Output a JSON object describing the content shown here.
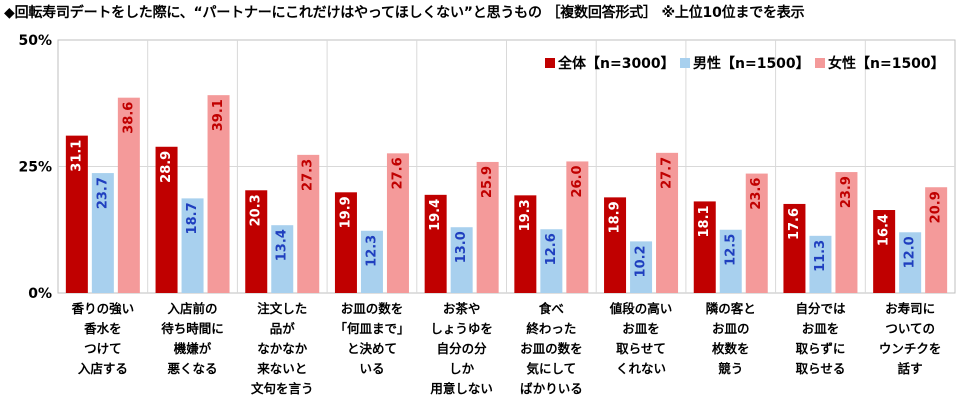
{
  "title": "◆回転寿司デートをした際に、“パートナーにこれだけはやってほしくない”と思うもの ［複数回答形式］ ※上位10位までを表示",
  "chart_data": {
    "type": "bar",
    "ylim": [
      0,
      50
    ],
    "yticks": [
      "0%",
      "25%",
      "50%"
    ],
    "ytick_values": [
      0,
      25,
      50
    ],
    "grid": true,
    "legend_position": "top-right",
    "categories": [
      [
        "香りの強い",
        "香水を",
        "つけて",
        "入店する"
      ],
      [
        "入店前の",
        "待ち時間に",
        "機嫌が",
        "悪くなる"
      ],
      [
        "注文した",
        "品が",
        "なかなか",
        "来ないと",
        "文句を言う"
      ],
      [
        "お皿の数を",
        "「何皿まで」",
        "と決めて",
        "いる"
      ],
      [
        "お茶や",
        "しょうゆを",
        "自分の分",
        "しか",
        "用意しない"
      ],
      [
        "食べ",
        "終わった",
        "お皿の数を",
        "気にして",
        "ばかりいる"
      ],
      [
        "値段の高い",
        "お皿を",
        "取らせて",
        "くれない"
      ],
      [
        "隣の客と",
        "お皿の",
        "枚数を",
        "競う"
      ],
      [
        "自分では",
        "お皿を",
        "取らずに",
        "取らせる"
      ],
      [
        "お寿司に",
        "ついての",
        "ウンチクを",
        "話す"
      ]
    ],
    "series": [
      {
        "name": "全体【n=3000】",
        "color": "#c00000",
        "label_color": "#ffffff",
        "values": [
          31.1,
          28.9,
          20.3,
          19.9,
          19.4,
          19.3,
          18.9,
          18.1,
          17.6,
          16.4
        ]
      },
      {
        "name": "男性【n=1500】",
        "color": "#a8d0ee",
        "label_color": "#1f3fbf",
        "values": [
          23.7,
          18.7,
          13.4,
          12.3,
          13.0,
          12.6,
          10.2,
          12.5,
          11.3,
          12.0
        ]
      },
      {
        "name": "女性【n=1500】",
        "color": "#f49a9a",
        "label_color": "#c00000",
        "values": [
          38.6,
          39.1,
          27.3,
          27.6,
          25.9,
          26.0,
          27.7,
          23.6,
          23.9,
          20.9
        ]
      }
    ]
  }
}
